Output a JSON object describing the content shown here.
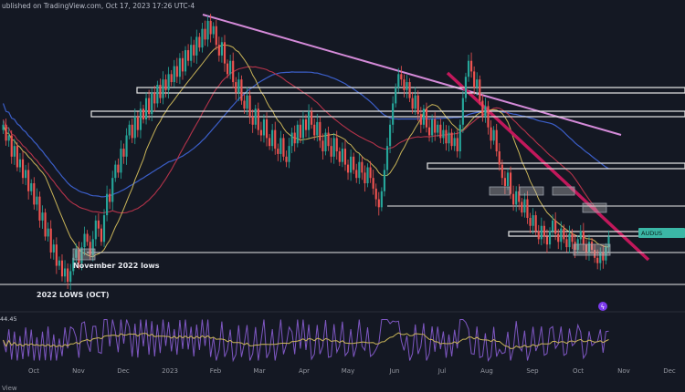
{
  "header": {
    "text": "ublished on TradingView.com, Oct 17, 2023 17:26 UTC-4"
  },
  "footer": {
    "text": "View"
  },
  "colors": {
    "background": "#141823",
    "bull": "#26a69a",
    "bear": "#ef5350",
    "ma_fast": "#c9b458",
    "ma_mid": "#b5334a",
    "ma_slow": "#3b5ec8",
    "trend_pink": "#d48ad8",
    "trend_red": "#c2185b",
    "level": "#e8e8e8",
    "rsi": "#7e57c2",
    "rsi_ma": "#c9b458",
    "price_badge": "#3bb7a6"
  },
  "chart_data": {
    "type": "candlestick",
    "x_ticks": [
      "Oct",
      "Nov",
      "Dec",
      "2023",
      "Feb",
      "Mar",
      "Apr",
      "May",
      "Jun",
      "Jul",
      "Aug",
      "Sep",
      "Oct",
      "Nov",
      "Dec"
    ],
    "annotations": [
      {
        "text": "November 2022 lows"
      },
      {
        "text": "2022 LOWS (OCT)"
      }
    ],
    "price_label": "AUDUS",
    "rsi_value_label": "44.45",
    "levels_frac": [
      0.23,
      0.29,
      0.51,
      0.62,
      0.74,
      0.85,
      0.91,
      1.0
    ],
    "series": [
      {
        "values": [
          0.6,
          0.54,
          0.56,
          0.48,
          0.52,
          0.44,
          0.47,
          0.4,
          0.43,
          0.35,
          0.38,
          0.3,
          0.33,
          0.24,
          0.27,
          0.18,
          0.21,
          0.12,
          0.15,
          0.07,
          0.09,
          0.03,
          0.06,
          0.01,
          0.05,
          0.1,
          0.13,
          0.08,
          0.14,
          0.19,
          0.16,
          0.11,
          0.17,
          0.24,
          0.21,
          0.16,
          0.26,
          0.34,
          0.31,
          0.4,
          0.45,
          0.42,
          0.51,
          0.48,
          0.56,
          0.6,
          0.55,
          0.63,
          0.58,
          0.66,
          0.62,
          0.7,
          0.64,
          0.72,
          0.68,
          0.75,
          0.7,
          0.77,
          0.73,
          0.79,
          0.76,
          0.82,
          0.78,
          0.85,
          0.8,
          0.88,
          0.84,
          0.9,
          0.86,
          0.93,
          0.89,
          0.96,
          0.92,
          0.99,
          0.94,
          0.97,
          0.9,
          0.86,
          0.91,
          0.83,
          0.79,
          0.84,
          0.76,
          0.72,
          0.77,
          0.69,
          0.66,
          0.71,
          0.63,
          0.6,
          0.66,
          0.58,
          0.56,
          0.62,
          0.55,
          0.52,
          0.58,
          0.51,
          0.49,
          0.55,
          0.48,
          0.46,
          0.52,
          0.57,
          0.53,
          0.6,
          0.55,
          0.62,
          0.58,
          0.65,
          0.6,
          0.56,
          0.61,
          0.54,
          0.5,
          0.57,
          0.52,
          0.48,
          0.55,
          0.5,
          0.46,
          0.51,
          0.45,
          0.42,
          0.48,
          0.43,
          0.4,
          0.46,
          0.42,
          0.38,
          0.44,
          0.4,
          0.36,
          0.32,
          0.29,
          0.35,
          0.43,
          0.52,
          0.6,
          0.68,
          0.74,
          0.79,
          0.77,
          0.73,
          0.76,
          0.7,
          0.66,
          0.71,
          0.64,
          0.6,
          0.66,
          0.59,
          0.56,
          0.62,
          0.57,
          0.6,
          0.55,
          0.58,
          0.53,
          0.57,
          0.52,
          0.55,
          0.5,
          0.6,
          0.7,
          0.78,
          0.84,
          0.8,
          0.74,
          0.77,
          0.69,
          0.63,
          0.67,
          0.59,
          0.54,
          0.58,
          0.5,
          0.45,
          0.4,
          0.37,
          0.42,
          0.34,
          0.3,
          0.35,
          0.31,
          0.27,
          0.32,
          0.25,
          0.22,
          0.26,
          0.2,
          0.17,
          0.22,
          0.18,
          0.15,
          0.2,
          0.24,
          0.19,
          0.16,
          0.21,
          0.17,
          0.14,
          0.19,
          0.16,
          0.13,
          0.17,
          0.2,
          0.15,
          0.12,
          0.16,
          0.13,
          0.1,
          0.08,
          0.12,
          0.09,
          0.14,
          0.18
        ]
      }
    ]
  }
}
